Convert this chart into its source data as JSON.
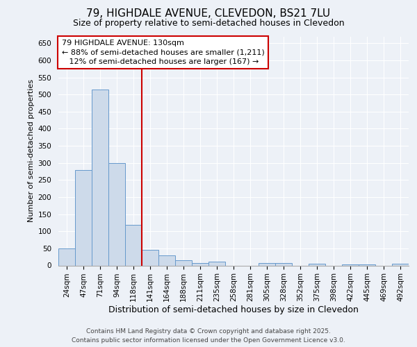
{
  "title1": "79, HIGHDALE AVENUE, CLEVEDON, BS21 7LU",
  "title2": "Size of property relative to semi-detached houses in Clevedon",
  "xlabel": "Distribution of semi-detached houses by size in Clevedon",
  "ylabel": "Number of semi-detached properties",
  "bin_labels": [
    "24sqm",
    "47sqm",
    "71sqm",
    "94sqm",
    "118sqm",
    "141sqm",
    "164sqm",
    "188sqm",
    "211sqm",
    "235sqm",
    "258sqm",
    "281sqm",
    "305sqm",
    "328sqm",
    "352sqm",
    "375sqm",
    "398sqm",
    "422sqm",
    "445sqm",
    "469sqm",
    "492sqm"
  ],
  "bar_values": [
    50,
    280,
    515,
    300,
    118,
    45,
    30,
    16,
    8,
    12,
    0,
    0,
    7,
    8,
    0,
    6,
    0,
    4,
    3,
    0,
    5
  ],
  "bar_color": "#cddaea",
  "bar_edge_color": "#6699cc",
  "vline_color": "#cc0000",
  "annotation_line1": "79 HIGHDALE AVENUE: 130sqm",
  "annotation_line2": "← 88% of semi-detached houses are smaller (1,211)",
  "annotation_line3": "   12% of semi-detached houses are larger (167) →",
  "annotation_box_color": "white",
  "annotation_box_edge": "#cc0000",
  "ylim": [
    0,
    670
  ],
  "yticks": [
    0,
    50,
    100,
    150,
    200,
    250,
    300,
    350,
    400,
    450,
    500,
    550,
    600,
    650
  ],
  "footer1": "Contains HM Land Registry data © Crown copyright and database right 2025.",
  "footer2": "Contains public sector information licensed under the Open Government Licence v3.0.",
  "bg_color": "#edf1f7",
  "plot_bg_color": "#edf1f7",
  "grid_color": "#ffffff",
  "title1_fontsize": 11,
  "title2_fontsize": 9,
  "tick_fontsize": 7.5,
  "ylabel_fontsize": 8,
  "xlabel_fontsize": 9,
  "annot_fontsize": 8,
  "footer_fontsize": 6.5
}
